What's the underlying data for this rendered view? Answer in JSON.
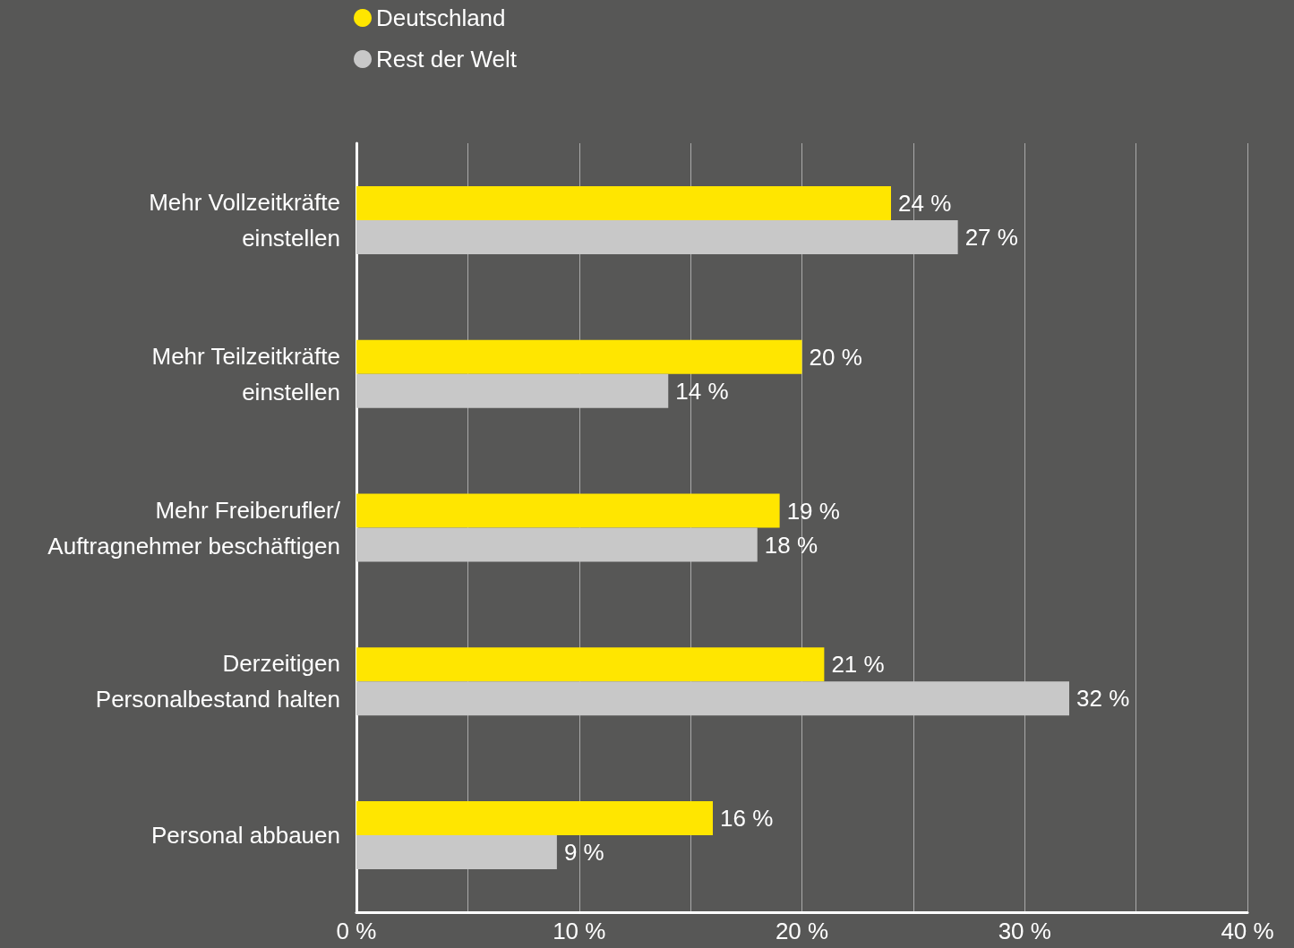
{
  "chart_data": {
    "type": "bar",
    "orientation": "horizontal",
    "categories": [
      "Mehr Vollzeitkräfte\neinstellen",
      "Mehr Teilzeitkräfte\neinstellen",
      "Mehr Freiberufler/\nAuftragnehmer beschäftigen",
      "Derzeitigen\nPersonalbestand halten",
      "Personal abbauen"
    ],
    "series": [
      {
        "name": "Deutschland",
        "color": "#ffe600",
        "values": [
          24,
          20,
          19,
          21,
          16
        ],
        "value_labels": [
          "24 %",
          "20 %",
          "19 %",
          "21 %",
          "16 %"
        ]
      },
      {
        "name": "Rest der Welt",
        "color": "#c8c8c8",
        "values": [
          27,
          14,
          18,
          32,
          9
        ],
        "value_labels": [
          "27 %",
          "14 %",
          "18 %",
          "32 %",
          "9 %"
        ]
      }
    ],
    "xlim": [
      0,
      40
    ],
    "xticks": [
      {
        "value": 0,
        "label": "0 %"
      },
      {
        "value": 5,
        "label": null
      },
      {
        "value": 10,
        "label": "10 %"
      },
      {
        "value": 15,
        "label": null
      },
      {
        "value": 20,
        "label": "20 %"
      },
      {
        "value": 25,
        "label": null
      },
      {
        "value": 30,
        "label": "30 %"
      },
      {
        "value": 35,
        "label": null
      },
      {
        "value": 40,
        "label": "40 %"
      }
    ],
    "grid": "x",
    "legend": "top left"
  }
}
